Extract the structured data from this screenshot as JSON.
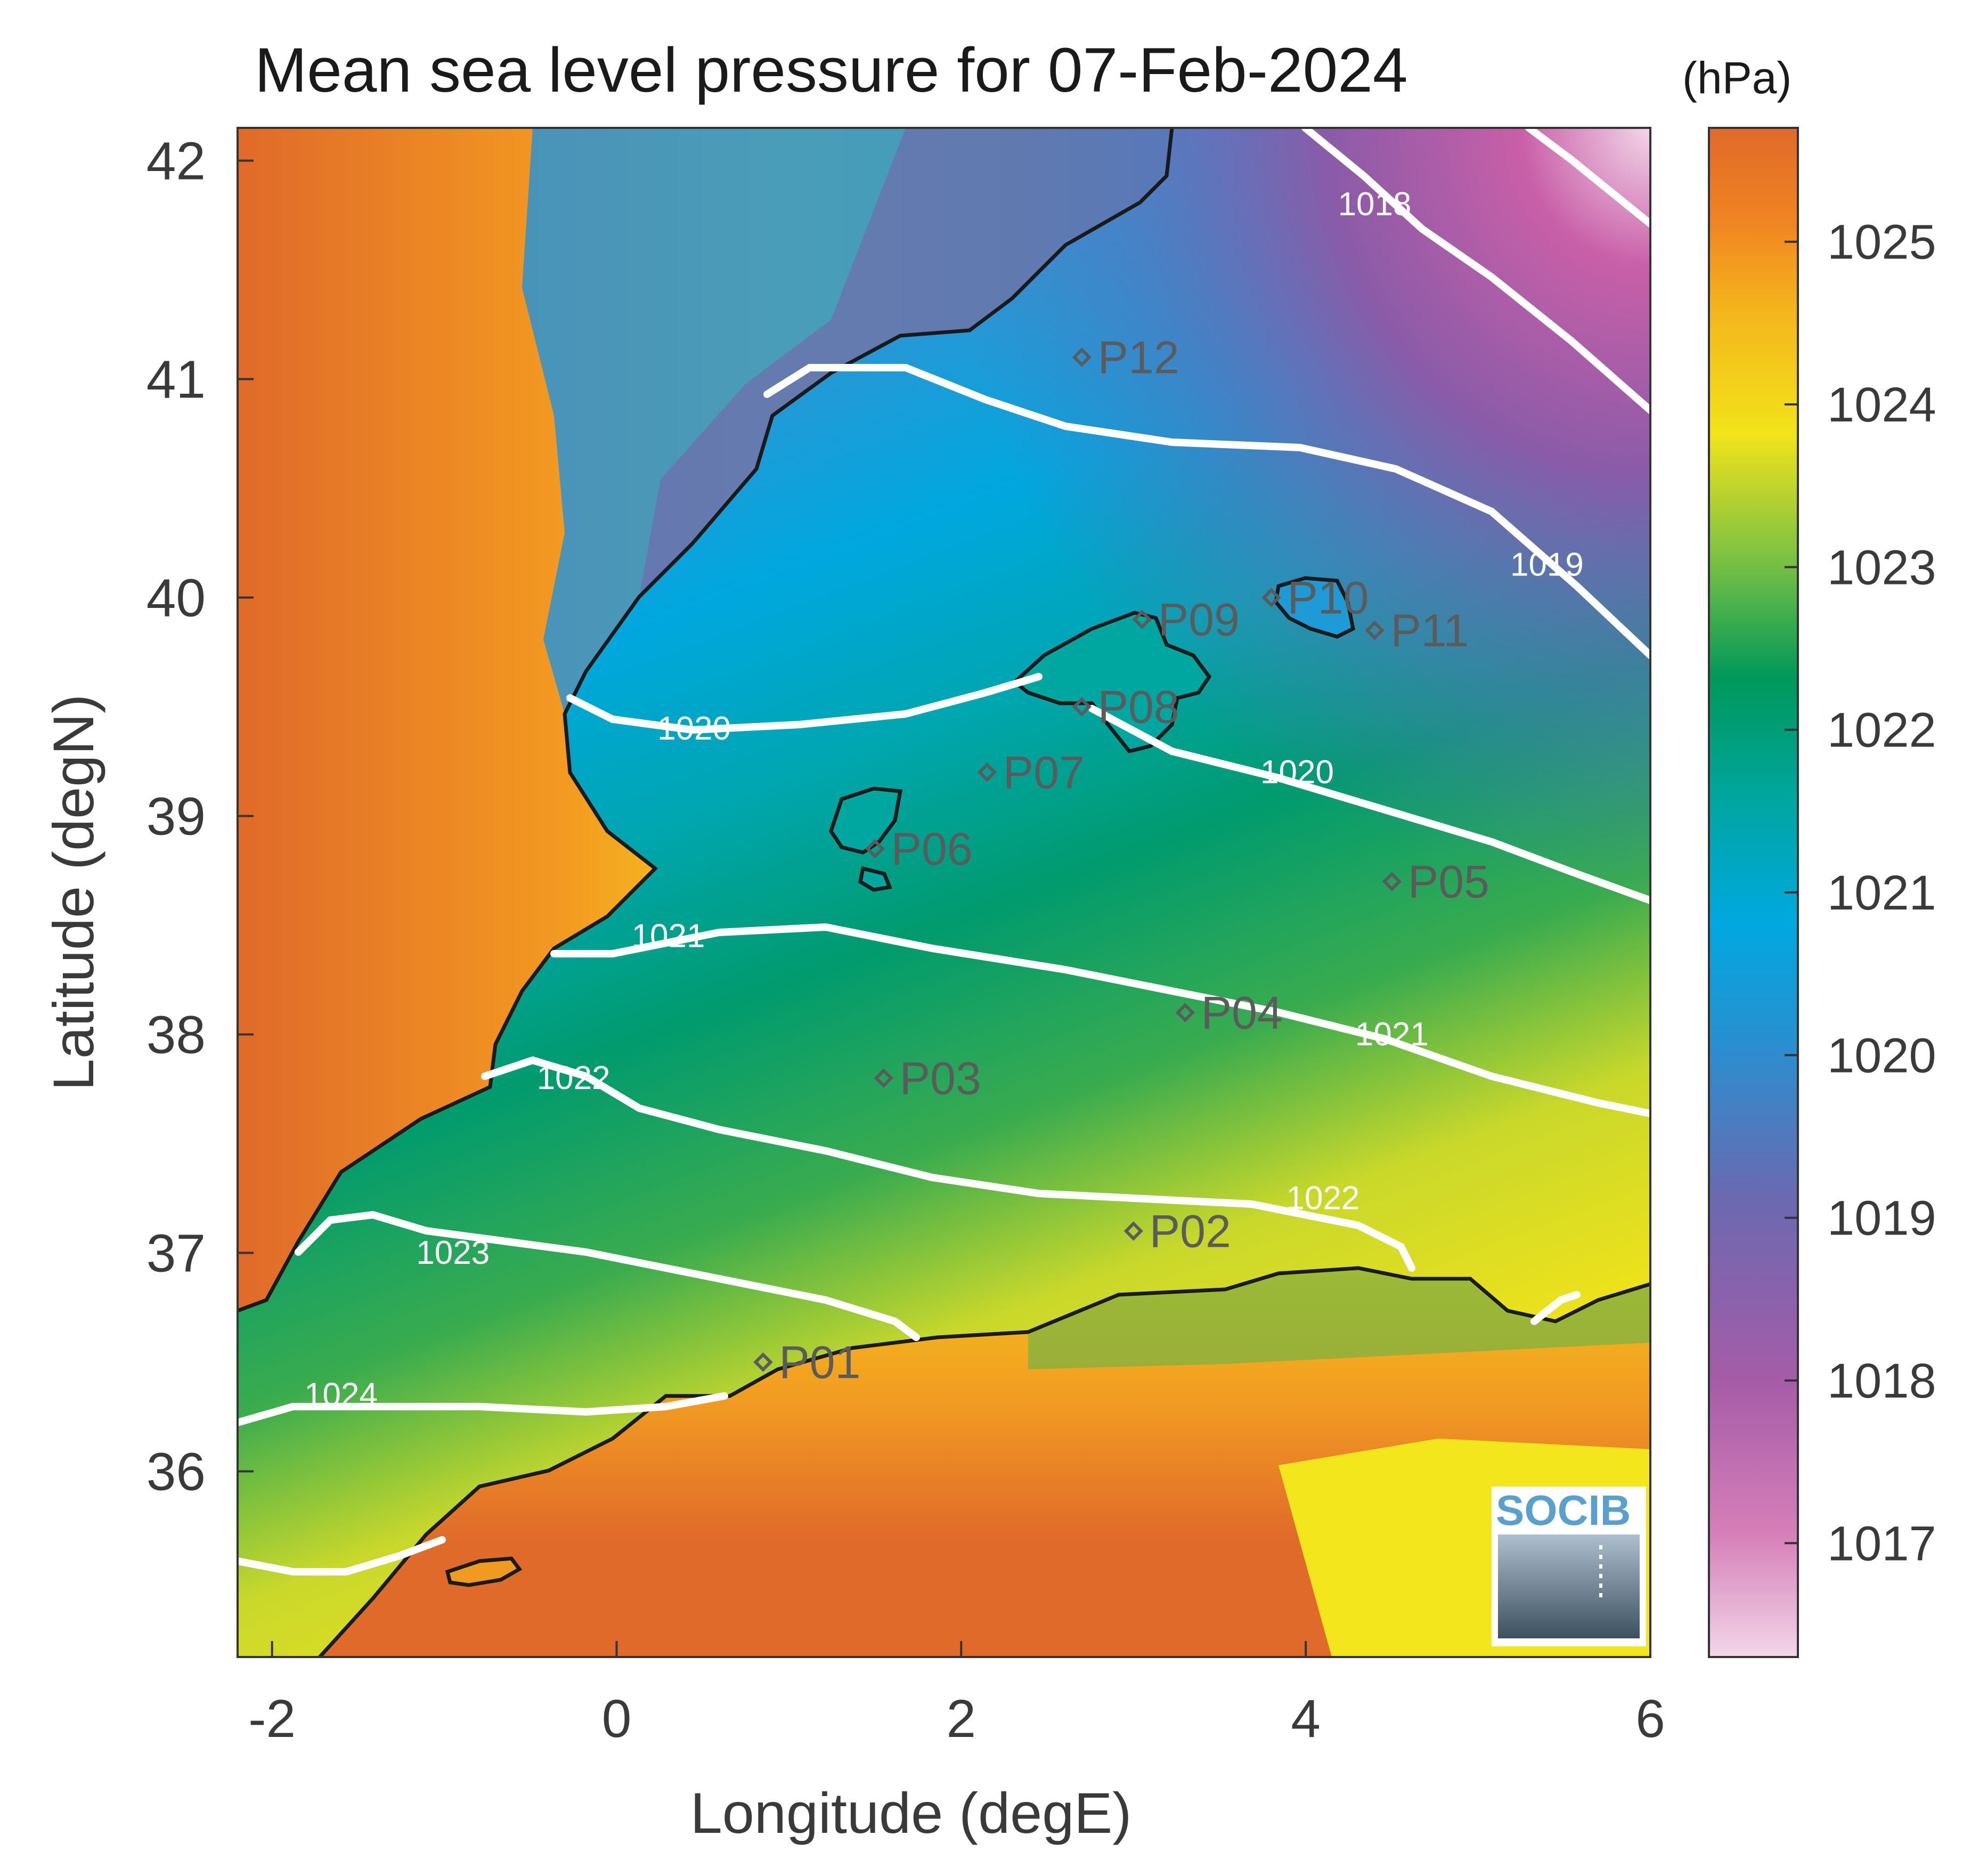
{
  "title": "Mean sea level pressure for 07-Feb-2024",
  "units": "(hPa)",
  "xlabel": "Longitude (degE)",
  "ylabel": "Latitude (degN)",
  "x_ticks": [
    "-2",
    "0",
    "2",
    "4",
    "6"
  ],
  "y_ticks": [
    "36",
    "37",
    "38",
    "39",
    "40",
    "41",
    "42"
  ],
  "colorbar_ticks": [
    "1017",
    "1018",
    "1019",
    "1020",
    "1021",
    "1022",
    "1023",
    "1024",
    "1025"
  ],
  "contour_labels": [
    {
      "text": "1018",
      "lon": 4.4,
      "lat": 41.75
    },
    {
      "text": "1019",
      "lon": 5.4,
      "lat": 40.1
    },
    {
      "text": "1020",
      "lon": 0.45,
      "lat": 39.35
    },
    {
      "text": "1020",
      "lon": 3.95,
      "lat": 39.15
    },
    {
      "text": "1021",
      "lon": 0.3,
      "lat": 38.4
    },
    {
      "text": "1021",
      "lon": 4.5,
      "lat": 37.95
    },
    {
      "text": "1022",
      "lon": -0.25,
      "lat": 37.75
    },
    {
      "text": "1022",
      "lon": 4.1,
      "lat": 37.2
    },
    {
      "text": "1023",
      "lon": -0.95,
      "lat": 36.95
    },
    {
      "text": "1024",
      "lon": -1.6,
      "lat": 36.3
    }
  ],
  "stations": [
    {
      "id": "P01",
      "lon": 0.85,
      "lat": 36.5
    },
    {
      "id": "P02",
      "lon": 3.0,
      "lat": 37.1
    },
    {
      "id": "P03",
      "lon": 1.55,
      "lat": 37.8
    },
    {
      "id": "P04",
      "lon": 3.3,
      "lat": 38.1
    },
    {
      "id": "P05",
      "lon": 4.5,
      "lat": 38.7
    },
    {
      "id": "P06",
      "lon": 1.5,
      "lat": 38.85
    },
    {
      "id": "P07",
      "lon": 2.15,
      "lat": 39.2
    },
    {
      "id": "P08",
      "lon": 2.7,
      "lat": 39.5
    },
    {
      "id": "P09",
      "lon": 3.05,
      "lat": 39.9
    },
    {
      "id": "P10",
      "lon": 3.8,
      "lat": 40.0
    },
    {
      "id": "P11",
      "lon": 4.4,
      "lat": 39.85
    },
    {
      "id": "P12",
      "lon": 2.7,
      "lat": 41.1
    }
  ],
  "logo_text": "SOCIB",
  "colormap": [
    "#f2d6e8",
    "#c95fa8",
    "#7b5ea7",
    "#1e9ad6",
    "#00a6a6",
    "#009b55",
    "#8cc63f",
    "#f7e81c",
    "#f6a21b",
    "#e06a2a"
  ]
}
